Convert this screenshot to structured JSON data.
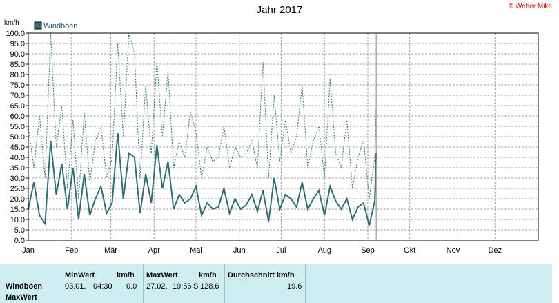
{
  "title": "Jahr 2017",
  "copyright": "© Weber Mike",
  "footer": {
    "row_labels": [
      "Windböen",
      "MaxWert"
    ],
    "min_header": "MinWert",
    "min_unit": "km/h",
    "min_date": "03.01.",
    "min_time": "04:30",
    "min_value": "0.0",
    "max_header": "MaxWert",
    "max_unit": "km/h",
    "max_date": "27.02.",
    "max_time": "19:56",
    "max_dir": "S",
    "max_value": "128.6",
    "avg_header": "Durchschnitt km/h",
    "avg_value": "19.6"
  },
  "colors": {
    "series": "#2f6f73",
    "grid": "#a0a0a0",
    "axis": "#000000",
    "divider": "#808080"
  },
  "chart_data": {
    "type": "line",
    "title": "Jahr 2017",
    "ylabel": "km/h",
    "ylim": [
      0,
      100
    ],
    "y_ticks": [
      "0.0",
      "5.0",
      "10.0",
      "15.0",
      "20.0",
      "25.0",
      "30.0",
      "35.0",
      "40.0",
      "45.0",
      "50.0",
      "55.0",
      "60.0",
      "65.0",
      "70.0",
      "75.0",
      "80.0",
      "85.0",
      "90.0",
      "95.0",
      "100.0"
    ],
    "x_ticks": [
      "Jan",
      "Feb",
      "Mär",
      "Apr",
      "Mai",
      "Jun",
      "Jul",
      "Aug",
      "Sep",
      "Okt",
      "Nov",
      "Dez"
    ],
    "x_unit": "day of year",
    "grid": true,
    "legend_position": "top-left",
    "current_day": 250,
    "series": [
      {
        "name": "Windböen",
        "style": "solid",
        "x": [
          1,
          5,
          9,
          13,
          17,
          21,
          25,
          29,
          33,
          37,
          41,
          45,
          49,
          53,
          57,
          61,
          65,
          69,
          73,
          77,
          81,
          85,
          89,
          93,
          97,
          101,
          105,
          109,
          113,
          117,
          121,
          125,
          129,
          133,
          137,
          141,
          145,
          149,
          153,
          157,
          161,
          165,
          169,
          173,
          177,
          181,
          185,
          189,
          193,
          197,
          201,
          205,
          209,
          213,
          217,
          221,
          225,
          229,
          233,
          237,
          241,
          245,
          249,
          250
        ],
        "values": [
          15,
          28,
          12,
          8,
          48,
          22,
          37,
          15,
          35,
          10,
          32,
          12,
          20,
          26,
          13,
          18,
          52,
          20,
          42,
          40,
          13,
          32,
          18,
          46,
          25,
          38,
          15,
          22,
          18,
          20,
          26,
          12,
          18,
          15,
          16,
          25,
          13,
          20,
          15,
          17,
          22,
          14,
          24,
          9,
          30,
          15,
          22,
          20,
          16,
          28,
          15,
          20,
          24,
          12,
          26,
          19,
          15,
          20,
          10,
          16,
          18,
          7,
          19,
          42
        ]
      },
      {
        "name": "MaxWert",
        "style": "dotted",
        "x": [
          1,
          5,
          9,
          13,
          17,
          21,
          25,
          29,
          33,
          37,
          41,
          45,
          49,
          53,
          57,
          61,
          65,
          69,
          73,
          77,
          81,
          85,
          89,
          93,
          97,
          101,
          105,
          109,
          113,
          117,
          121,
          125,
          129,
          133,
          137,
          141,
          145,
          149,
          153,
          157,
          161,
          165,
          169,
          173,
          177,
          181,
          185,
          189,
          193,
          197,
          201,
          205,
          209,
          213,
          217,
          221,
          225,
          229,
          233,
          237,
          241,
          245,
          249,
          250
        ],
        "values": [
          55,
          35,
          60,
          30,
          100,
          45,
          65,
          25,
          58,
          20,
          62,
          28,
          48,
          55,
          30,
          40,
          95,
          50,
          100,
          90,
          30,
          75,
          42,
          86,
          50,
          82,
          35,
          48,
          40,
          62,
          52,
          30,
          45,
          38,
          40,
          55,
          35,
          45,
          40,
          42,
          48,
          35,
          86,
          30,
          70,
          38,
          58,
          42,
          50,
          75,
          35,
          48,
          55,
          30,
          78,
          42,
          35,
          58,
          25,
          40,
          48,
          20,
          40,
          65
        ]
      }
    ]
  }
}
